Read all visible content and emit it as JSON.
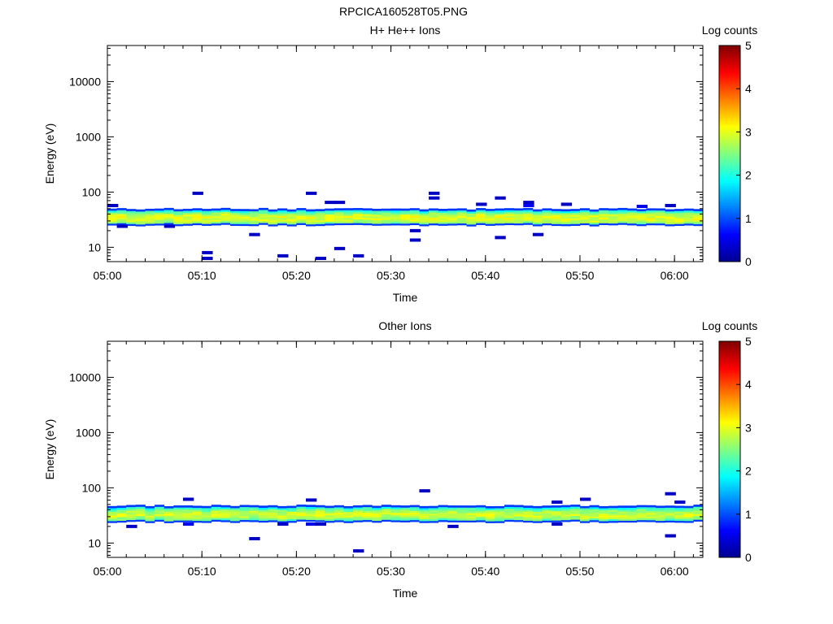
{
  "figure_title": "RPCICA160528T05.PNG",
  "colors": {
    "background": "#ffffff",
    "axis": "#000000",
    "colormap": [
      "#00008f",
      "#0000ff",
      "#0080ff",
      "#00ffff",
      "#80ff80",
      "#ffff00",
      "#ff8000",
      "#ff0000",
      "#800000"
    ]
  },
  "chart_data": [
    {
      "type": "heatmap",
      "title": "H+ He++ Ions",
      "xlabel": "Time",
      "ylabel": "Energy (eV)",
      "x_scale": "time",
      "y_scale": "log",
      "xlim": [
        "05:00",
        "06:03"
      ],
      "ylim": [
        5.5,
        45000
      ],
      "x_ticks": [
        "05:00",
        "05:10",
        "05:20",
        "05:30",
        "05:40",
        "05:50",
        "06:00"
      ],
      "y_ticks": [
        "10",
        "100",
        "1000",
        "10000"
      ],
      "colorbar": {
        "label": "Log counts",
        "range": [
          0,
          5
        ],
        "ticks": [
          "0",
          "1",
          "2",
          "3",
          "4",
          "5"
        ]
      },
      "band": {
        "energy_low": 25,
        "energy_high": 50,
        "peak_energy": 34,
        "peak_log_counts": 3.0
      },
      "scattered_counts": [
        {
          "time": "05:00",
          "energy": 57,
          "log_counts": 0.3
        },
        {
          "time": "05:01",
          "energy": 24,
          "log_counts": 0.3
        },
        {
          "time": "05:06",
          "energy": 24,
          "log_counts": 0.3
        },
        {
          "time": "05:09",
          "energy": 95,
          "log_counts": 0.3
        },
        {
          "time": "05:10",
          "energy": 8,
          "log_counts": 0.3
        },
        {
          "time": "05:10",
          "energy": 6.3,
          "log_counts": 0.3
        },
        {
          "time": "05:15",
          "energy": 17,
          "log_counts": 0.3
        },
        {
          "time": "05:18",
          "energy": 7,
          "log_counts": 0.3
        },
        {
          "time": "05:21",
          "energy": 95,
          "log_counts": 0.3
        },
        {
          "time": "05:22",
          "energy": 6.3,
          "log_counts": 0.3
        },
        {
          "time": "05:23",
          "energy": 65,
          "log_counts": 0.3
        },
        {
          "time": "05:24",
          "energy": 65,
          "log_counts": 0.3
        },
        {
          "time": "05:24",
          "energy": 9.5,
          "log_counts": 0.3
        },
        {
          "time": "05:26",
          "energy": 7,
          "log_counts": 0.3
        },
        {
          "time": "05:32",
          "energy": 20,
          "log_counts": 0.3
        },
        {
          "time": "05:32",
          "energy": 13.5,
          "log_counts": 0.3
        },
        {
          "time": "05:34",
          "energy": 95,
          "log_counts": 0.3
        },
        {
          "time": "05:34",
          "energy": 78,
          "log_counts": 0.3
        },
        {
          "time": "05:39",
          "energy": 60,
          "log_counts": 0.3
        },
        {
          "time": "05:41",
          "energy": 78,
          "log_counts": 0.3
        },
        {
          "time": "05:41",
          "energy": 15,
          "log_counts": 0.3
        },
        {
          "time": "05:44",
          "energy": 65,
          "log_counts": 0.3
        },
        {
          "time": "05:44",
          "energy": 57,
          "log_counts": 0.6
        },
        {
          "time": "05:45",
          "energy": 17,
          "log_counts": 0.3
        },
        {
          "time": "05:48",
          "energy": 60,
          "log_counts": 0.3
        },
        {
          "time": "05:56",
          "energy": 55,
          "log_counts": 0.5
        },
        {
          "time": "05:59",
          "energy": 57,
          "log_counts": 0.3
        }
      ]
    },
    {
      "type": "heatmap",
      "title": "Other Ions",
      "xlabel": "Time",
      "ylabel": "Energy (eV)",
      "x_scale": "time",
      "y_scale": "log",
      "xlim": [
        "05:00",
        "06:03"
      ],
      "ylim": [
        5.5,
        45000
      ],
      "x_ticks": [
        "05:00",
        "05:10",
        "05:20",
        "05:30",
        "05:40",
        "05:50",
        "06:00"
      ],
      "y_ticks": [
        "10",
        "100",
        "1000",
        "10000"
      ],
      "colorbar": {
        "label": "Log counts",
        "range": [
          0,
          5
        ],
        "ticks": [
          "0",
          "1",
          "2",
          "3",
          "4",
          "5"
        ]
      },
      "band": {
        "energy_low": 24,
        "energy_high": 48,
        "peak_energy": 33,
        "peak_log_counts": 2.9
      },
      "scattered_counts": [
        {
          "time": "05:02",
          "energy": 20,
          "log_counts": 0.3
        },
        {
          "time": "05:08",
          "energy": 62,
          "log_counts": 0.3
        },
        {
          "time": "05:08",
          "energy": 22,
          "log_counts": 0.5
        },
        {
          "time": "05:15",
          "energy": 12,
          "log_counts": 0.3
        },
        {
          "time": "05:18",
          "energy": 22,
          "log_counts": 0.3
        },
        {
          "time": "05:21",
          "energy": 60,
          "log_counts": 0.3
        },
        {
          "time": "05:21",
          "energy": 22,
          "log_counts": 0.5
        },
        {
          "time": "05:22",
          "energy": 22,
          "log_counts": 0.3
        },
        {
          "time": "05:26",
          "energy": 7.2,
          "log_counts": 0.3
        },
        {
          "time": "05:33",
          "energy": 88,
          "log_counts": 0.3
        },
        {
          "time": "05:36",
          "energy": 20,
          "log_counts": 0.3
        },
        {
          "time": "05:47",
          "energy": 22,
          "log_counts": 0.3
        },
        {
          "time": "05:47",
          "energy": 55,
          "log_counts": 0.3
        },
        {
          "time": "05:50",
          "energy": 62,
          "log_counts": 0.3
        },
        {
          "time": "05:59",
          "energy": 78,
          "log_counts": 0.3
        },
        {
          "time": "05:59",
          "energy": 13.5,
          "log_counts": 0.3
        },
        {
          "time": "06:00",
          "energy": 55,
          "log_counts": 0.3
        }
      ]
    }
  ]
}
